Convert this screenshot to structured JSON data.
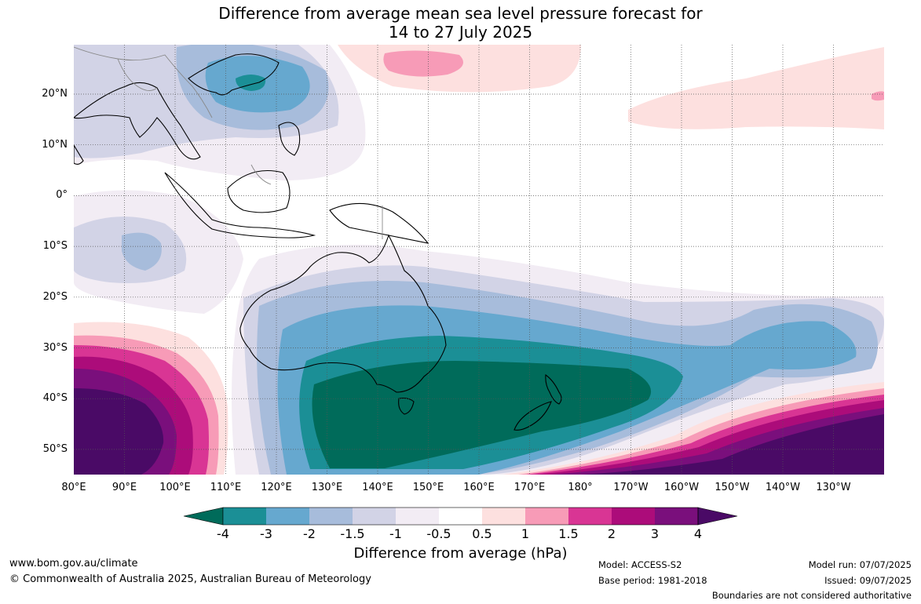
{
  "title": {
    "line1": "Difference from average mean sea level pressure forecast for",
    "line2": "14 to 27 July 2025"
  },
  "map": {
    "latitude_labels": [
      "20°N",
      "10°N",
      "0°",
      "10°S",
      "20°S",
      "30°S",
      "40°S",
      "50°S"
    ],
    "longitude_labels": [
      "80°E",
      "90°E",
      "100°E",
      "110°E",
      "120°E",
      "130°E",
      "140°E",
      "150°E",
      "160°E",
      "170°E",
      "180°",
      "170°W",
      "160°W",
      "150°W",
      "140°W",
      "130°W"
    ]
  },
  "colorbar": {
    "tick_labels": [
      "-4",
      "-3",
      "-2",
      "-1.5",
      "-1",
      "-0.5",
      "0.5",
      "1",
      "1.5",
      "2",
      "3",
      "4"
    ],
    "colors": [
      "#006b5a",
      "#1b8f96",
      "#66a8cf",
      "#a7bcdb",
      "#d2d3e6",
      "#f2ecf4",
      "#ffffff",
      "#fde0df",
      "#f79bb7",
      "#d93594",
      "#ac0c7a",
      "#7a0f7c",
      "#4a0a66"
    ],
    "title": "Difference from average (hPa)"
  },
  "footer": {
    "website": "www.bom.gov.au/climate",
    "copyright": "© Commonwealth of Australia 2025, Australian Bureau of Meteorology",
    "model": "Model: ACCESS-S2",
    "base_period": "Base period: 1981-2018",
    "model_run": "Model run: 07/07/2025",
    "issued": "Issued: 09/07/2025",
    "disclaimer": "Boundaries are not considered authoritative"
  }
}
